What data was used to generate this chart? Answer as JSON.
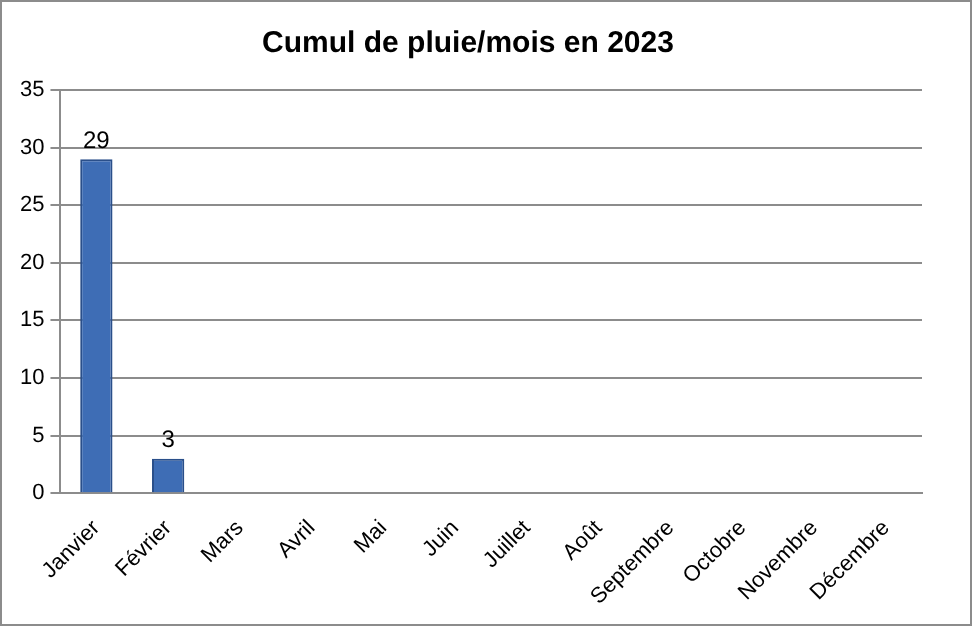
{
  "chart_data": {
    "type": "bar",
    "title": "Cumul de pluie/mois en 2023",
    "categories": [
      "Janvier",
      "Février",
      "Mars",
      "Avril",
      "Mai",
      "Juin",
      "Juillet",
      "Août",
      "Septembre",
      "Octobre",
      "Novembre",
      "Décembre"
    ],
    "values": [
      29,
      3,
      null,
      null,
      null,
      null,
      null,
      null,
      null,
      null,
      null,
      null
    ],
    "color": "#3e6db5",
    "ylim": [
      0,
      35
    ],
    "yticks": [
      0,
      5,
      10,
      15,
      20,
      25,
      30,
      35
    ],
    "grid": "y",
    "data_labels": true
  }
}
